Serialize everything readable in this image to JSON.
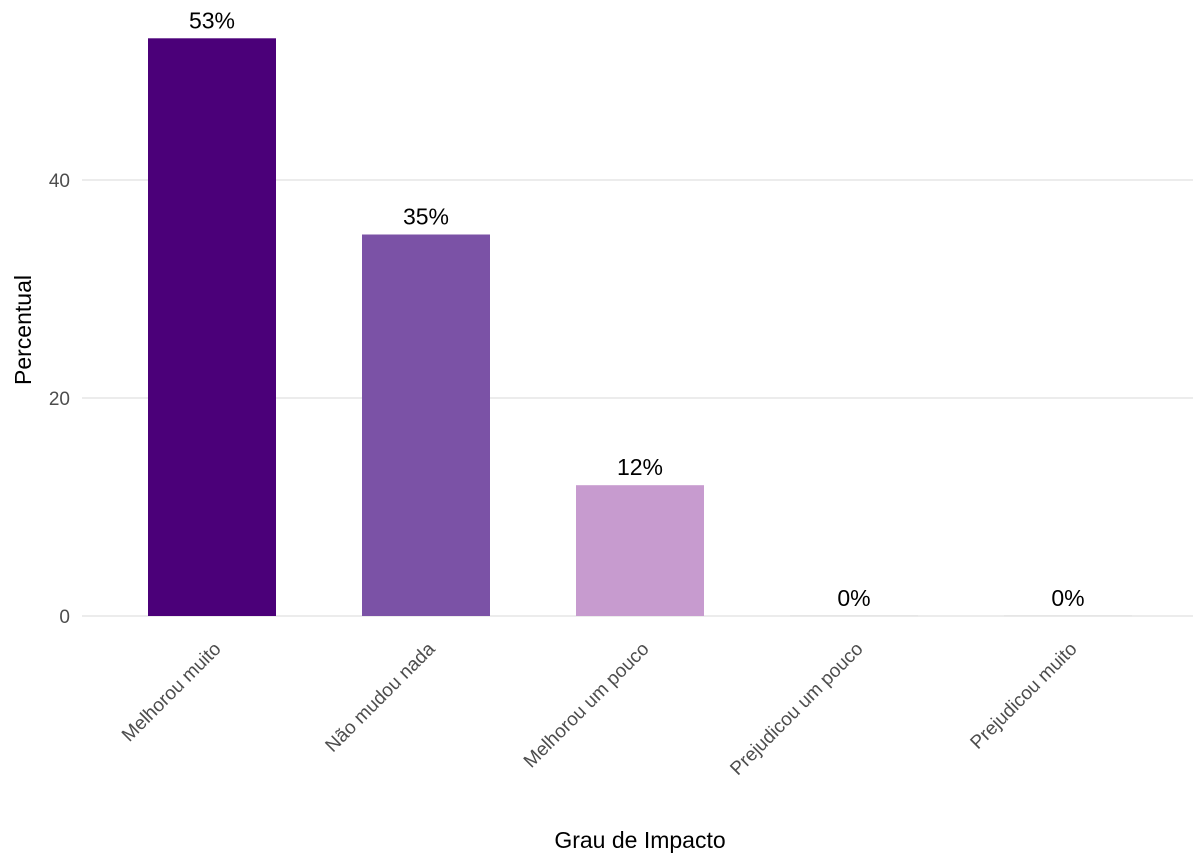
{
  "chart_data": {
    "type": "bar",
    "title": "",
    "xlabel": "Grau de Impacto",
    "ylabel": "Percentual",
    "categories": [
      "Melhorou muito",
      "Não mudou nada",
      "Melhorou um pouco",
      "Prejudicou um pouco",
      "Prejudicou muito"
    ],
    "values": [
      53,
      35,
      12,
      0,
      0
    ],
    "data_labels": [
      "53%",
      "35%",
      "12%",
      "0%",
      "0%"
    ],
    "bar_colors": [
      "#4B0079",
      "#7B52A6",
      "#C79BCF",
      "#E6E6E6",
      "#E6E6E6"
    ],
    "ylim": [
      0,
      55
    ],
    "yticks": [
      0,
      20,
      40
    ],
    "ytick_labels": [
      "0",
      "20",
      "40"
    ],
    "grid": "horizontal",
    "legend": "none"
  }
}
